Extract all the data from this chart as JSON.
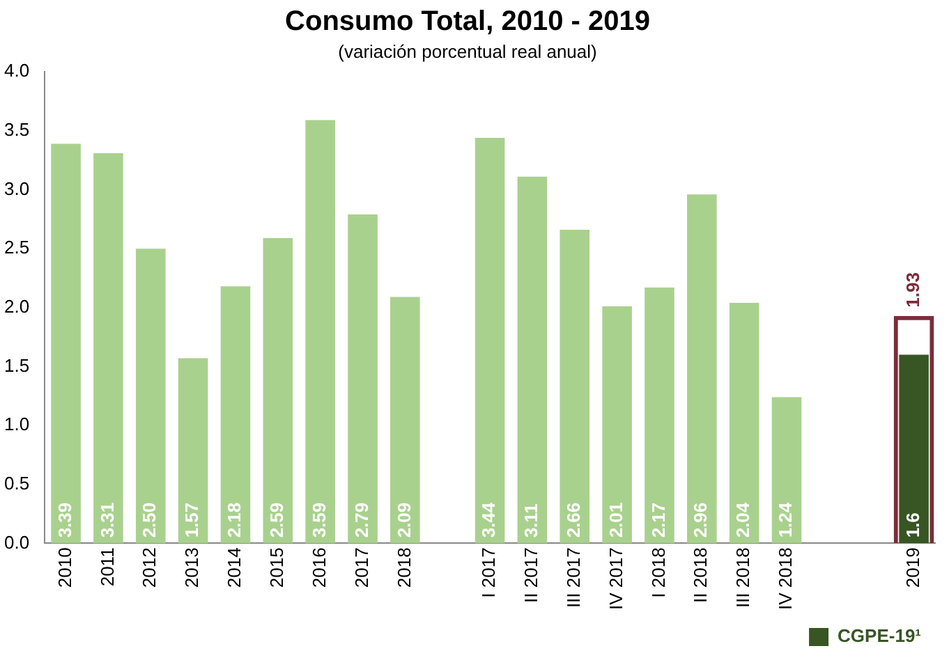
{
  "chart_data": {
    "type": "bar",
    "title": "Consumo Total, 2010 - 2019",
    "subtitle": "(variación porcentual real anual)",
    "categories": [
      "2010",
      "2011",
      "2012",
      "2013",
      "2014",
      "2015",
      "2016",
      "2017",
      "2018",
      null,
      "I 2017",
      "II 2017",
      "III 2017",
      "IV 2017",
      "I 2018",
      "II 2018",
      "III 2018",
      "IV 2018",
      null,
      null,
      "2019"
    ],
    "series": [
      {
        "color": "#a9d18e",
        "values": [
          3.39,
          3.31,
          2.5,
          1.57,
          2.18,
          2.59,
          3.59,
          2.79,
          2.09,
          null,
          3.44,
          3.11,
          2.66,
          2.01,
          2.17,
          2.96,
          2.04,
          1.24,
          null,
          null,
          null
        ],
        "value_labels": [
          "3.39",
          "3.31",
          "2.50",
          "1.57",
          "2.18",
          "2.59",
          "3.59",
          "2.79",
          "2.09",
          null,
          "3.44",
          "3.11",
          "2.66",
          "2.01",
          "2.17",
          "2.96",
          "2.04",
          "1.24",
          null,
          null,
          null
        ]
      },
      {
        "name": "CGPE-19¹",
        "color": "#375623",
        "values": [
          null,
          null,
          null,
          null,
          null,
          null,
          null,
          null,
          null,
          null,
          null,
          null,
          null,
          null,
          null,
          null,
          null,
          null,
          null,
          null,
          1.6
        ],
        "value_labels": [
          null,
          null,
          null,
          null,
          null,
          null,
          null,
          null,
          null,
          null,
          null,
          null,
          null,
          null,
          null,
          null,
          null,
          null,
          null,
          null,
          "1.6"
        ]
      },
      {
        "color": "#7b2c3a",
        "line_style": "dashed",
        "values": [
          null,
          null,
          null,
          null,
          null,
          null,
          null,
          null,
          null,
          null,
          null,
          null,
          null,
          null,
          null,
          null,
          null,
          null,
          null,
          null,
          1.93
        ],
        "value_labels": [
          null,
          null,
          null,
          null,
          null,
          null,
          null,
          null,
          null,
          null,
          null,
          null,
          null,
          null,
          null,
          null,
          null,
          null,
          null,
          null,
          "1.93"
        ]
      }
    ],
    "ylim": [
      0,
      4
    ],
    "yticks": [
      {
        "value": 0,
        "label": "0.0"
      },
      {
        "value": 0.5,
        "label": "0.5"
      },
      {
        "value": 1,
        "label": "1.0"
      },
      {
        "value": 1.5,
        "label": "1.5"
      },
      {
        "value": 2,
        "label": "2.0"
      },
      {
        "value": 2.5,
        "label": "2.5"
      },
      {
        "value": 3,
        "label": "3.0"
      },
      {
        "value": 3.5,
        "label": "3.5"
      },
      {
        "value": 4,
        "label": "4.0"
      }
    ],
    "legend": "bottom right"
  }
}
